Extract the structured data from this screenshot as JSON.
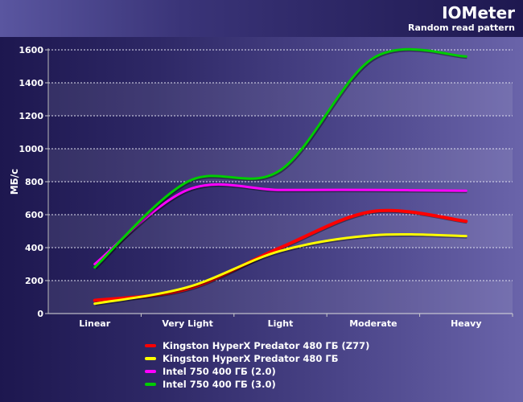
{
  "header": {
    "title": "IOMeter",
    "subtitle": "Random read pattern"
  },
  "chart_data": {
    "type": "line",
    "title": "IOMeter",
    "subtitle": "Random read pattern",
    "xlabel": "",
    "ylabel": "МБ/с",
    "ylim": [
      0,
      1600
    ],
    "yticks": [
      "0",
      "200",
      "400",
      "600",
      "800",
      "1000",
      "1200",
      "1400",
      "1600"
    ],
    "categories": [
      "Linear",
      "Very Light",
      "Light",
      "Moderate",
      "Heavy"
    ],
    "grid": true,
    "legend_position": "bottom",
    "series": [
      {
        "name": "Kingston HyperX Predator 480 ГБ (Z77)",
        "color": "#ff0000",
        "values": [
          80,
          150,
          400,
          620,
          560
        ]
      },
      {
        "name": "Kingston HyperX Predator 480 ГБ",
        "color": "#ffff00",
        "values": [
          60,
          160,
          380,
          475,
          470
        ]
      },
      {
        "name": "Intel 750 400 ГБ (2.0)",
        "color": "#ff00ff",
        "values": [
          300,
          750,
          750,
          750,
          745
        ]
      },
      {
        "name": "Intel 750 400 ГБ (3.0)",
        "color": "#00cc00",
        "values": [
          280,
          800,
          870,
          1550,
          1560
        ]
      }
    ]
  }
}
